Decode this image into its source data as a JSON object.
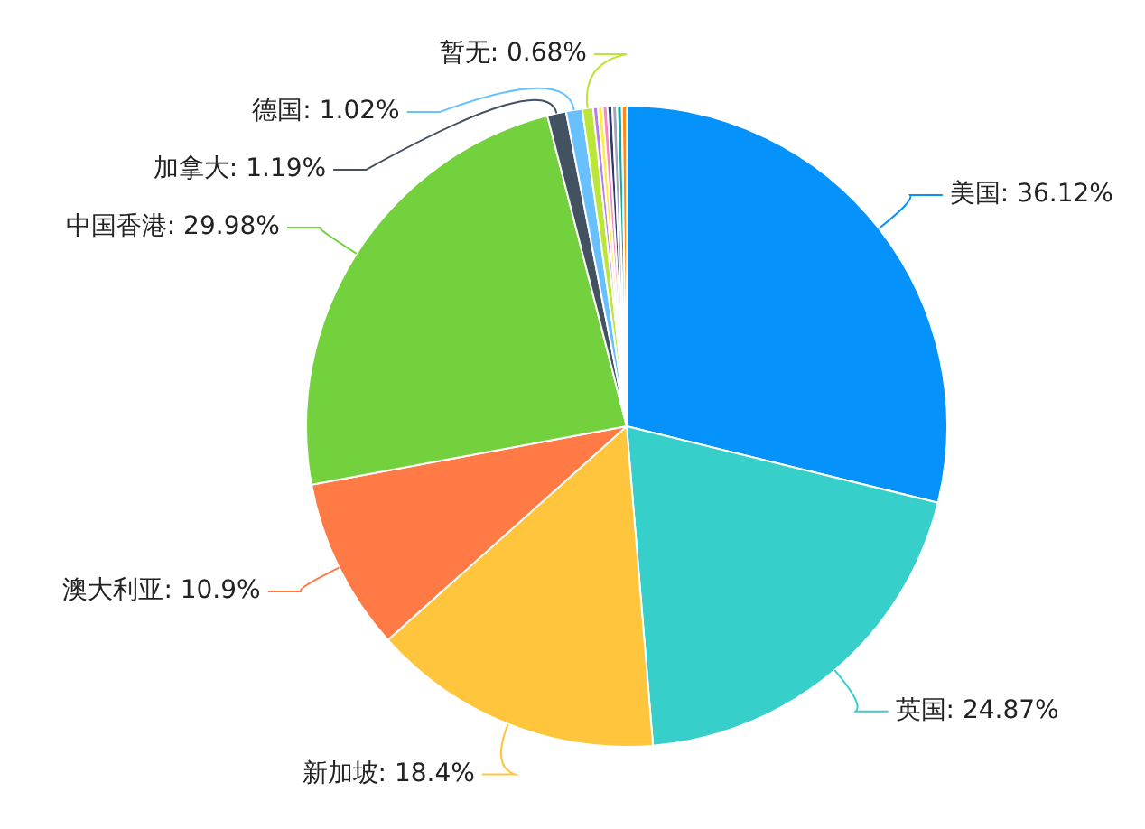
{
  "chart_data": {
    "type": "pie",
    "categories": [
      "美国",
      "英国",
      "新加坡",
      "澳大利亚",
      "中国香港",
      "加拿大",
      "德国",
      "暂无",
      null,
      null,
      null,
      null,
      null,
      null,
      null
    ],
    "values": [
      36.12,
      24.87,
      18.4,
      10.9,
      29.98,
      1.19,
      1.02,
      0.68,
      0.3,
      0.3,
      0.3,
      0.3,
      0.3,
      0.3,
      0.3
    ],
    "value_labels": [
      "36.12%",
      "24.87%",
      "18.4%",
      "10.9%",
      "29.98%",
      "1.19%",
      "1.02%",
      "0.68%",
      null,
      null,
      null,
      null,
      null,
      null,
      null
    ],
    "colors": [
      "#0593fb",
      "#36cfc9",
      "#ffc53d",
      "#ff7a45",
      "#73d13d",
      "#435260",
      "#69c0ff",
      "#bae637",
      "#b37feb",
      "#ffec3d",
      "#ff85c0",
      "#2f3a6b",
      "#a0a8b8",
      "#13a8a8",
      "#fa8c16"
    ],
    "legend": false
  }
}
